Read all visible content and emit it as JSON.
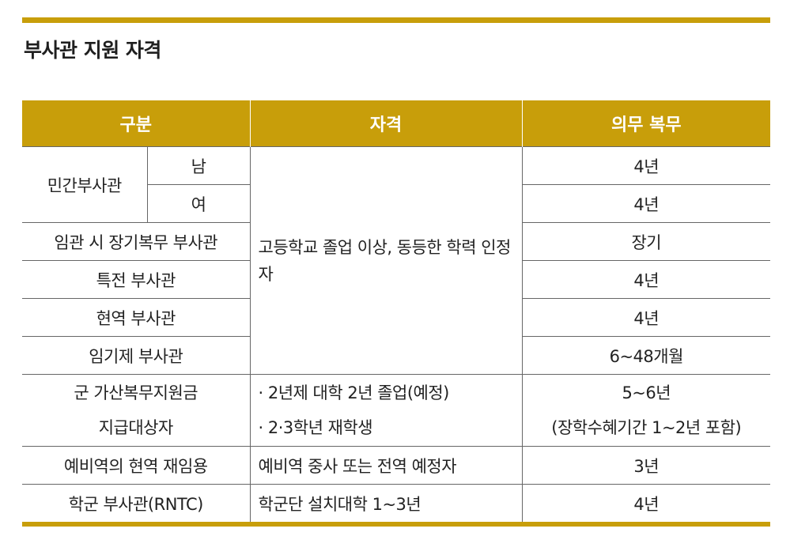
{
  "title": "부사관 지원 자격",
  "headers": {
    "category": "구분",
    "qualification": "자격",
    "service": "의무 복무"
  },
  "rows": {
    "civilian": {
      "label": "민간부사관",
      "male": "남",
      "female": "여",
      "male_service": "4년",
      "female_service": "4년"
    },
    "long_term": {
      "label": "임관 시 장기복무 부사관",
      "service": "장기"
    },
    "special": {
      "label": "특전 부사관",
      "service": "4년"
    },
    "active": {
      "label": "현역 부사관",
      "service": "4년"
    },
    "fixed_term": {
      "label": "임기제 부사관",
      "service": "6~48개월"
    },
    "shared_qualification": "고등학교 졸업 이상, 동등한 학력 인정자",
    "scholarship": {
      "label_line1": "군 가산복무지원금",
      "label_line2": "지급대상자",
      "qual_line1": "· 2년제 대학 2년 졸업(예정)",
      "qual_line2": "· 2·3학년 재학생",
      "service_line1": "5~6년",
      "service_line2": "(장학수혜기간 1~2년 포함)"
    },
    "reserve": {
      "label": "예비역의 현역 재임용",
      "qualification": "예비역 중사 또는 전역 예정자",
      "service": "3년"
    },
    "rntc": {
      "label": "학군 부사관(RNTC)",
      "qualification": "학군단 설치대학 1~3년",
      "service": "4년"
    }
  }
}
